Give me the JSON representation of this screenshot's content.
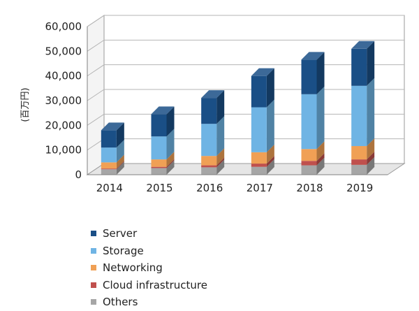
{
  "chart_data": {
    "type": "bar",
    "stacked": true,
    "three_d": true,
    "ylabel": "(百万円)",
    "ylim": [
      0,
      60000
    ],
    "yticks": [
      0,
      10000,
      20000,
      30000,
      40000,
      50000,
      60000
    ],
    "ytick_labels": [
      "0",
      "10,000",
      "20,000",
      "30,000",
      "40,000",
      "50,000",
      "60,000"
    ],
    "categories": [
      "2014",
      "2015",
      "2016",
      "2017",
      "2018",
      "2019"
    ],
    "grid": true,
    "legend_position": "bottom",
    "series": [
      {
        "name": "Others",
        "color": "#a6a6a6",
        "values": [
          2200,
          2700,
          3000,
          3200,
          3800,
          4000
        ]
      },
      {
        "name": "Cloud infrastructure",
        "color": "#c0504d",
        "values": [
          300,
          500,
          800,
          1300,
          1800,
          2200
        ]
      },
      {
        "name": "Networking",
        "color": "#f0a055",
        "values": [
          2500,
          3000,
          3800,
          4600,
          4800,
          5400
        ]
      },
      {
        "name": "Storage",
        "color": "#6fb4e4",
        "values": [
          6000,
          9300,
          13000,
          18200,
          22200,
          24400
        ]
      },
      {
        "name": "Server",
        "color": "#1a4f86",
        "values": [
          7000,
          9000,
          10500,
          12700,
          14000,
          15000
        ]
      }
    ],
    "legend_order": [
      "Server",
      "Storage",
      "Networking",
      "Cloud infrastructure",
      "Others"
    ]
  }
}
